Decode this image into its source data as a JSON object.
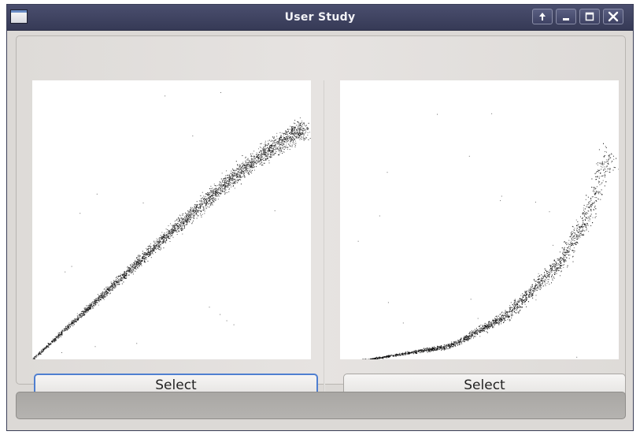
{
  "window": {
    "title": "User Study"
  },
  "titlebar": {
    "buttons": [
      {
        "icon": "up-arrow-icon"
      },
      {
        "icon": "minimize-icon"
      },
      {
        "icon": "maximize-icon"
      },
      {
        "icon": "close-icon"
      }
    ]
  },
  "left_panel": {
    "button_label": "Select",
    "focused": true
  },
  "right_panel": {
    "button_label": "Select",
    "focused": false
  },
  "status_bar": {
    "text": ""
  },
  "colors": {
    "titlebar": "#3e4263",
    "focus_ring": "#4f7fd0",
    "point": "#111111"
  },
  "chart_data": [
    {
      "type": "scatter",
      "title": "",
      "xlabel": "",
      "ylabel": "",
      "shape": "linear-fan",
      "description_points": [
        {
          "x": 0.0,
          "y": 0.0
        },
        {
          "x": 0.25,
          "y": 0.23
        },
        {
          "x": 0.5,
          "y": 0.46
        },
        {
          "x": 0.75,
          "y": 0.68
        },
        {
          "x": 0.95,
          "y": 0.82
        }
      ],
      "xlim": [
        0,
        1
      ],
      "ylim": [
        0,
        1
      ],
      "grid": false
    },
    {
      "type": "scatter",
      "title": "",
      "xlabel": "",
      "ylabel": "",
      "shape": "convex-curve",
      "description_points": [
        {
          "x": 0.1,
          "y": 0.0
        },
        {
          "x": 0.4,
          "y": 0.05
        },
        {
          "x": 0.6,
          "y": 0.16
        },
        {
          "x": 0.8,
          "y": 0.36
        },
        {
          "x": 0.9,
          "y": 0.55
        },
        {
          "x": 0.95,
          "y": 0.72
        }
      ],
      "xlim": [
        0,
        1
      ],
      "ylim": [
        0,
        1
      ],
      "grid": false
    }
  ]
}
